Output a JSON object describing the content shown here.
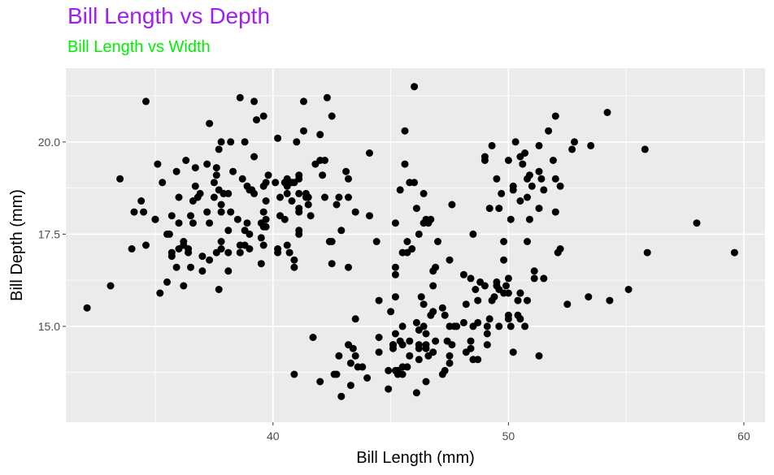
{
  "chart_data": {
    "type": "scatter",
    "title": "Bill Length vs Depth",
    "subtitle": "Bill Length vs Width",
    "xlabel": "Bill Length (mm)",
    "ylabel": "Bill Depth (mm)",
    "xlim": [
      31.2,
      60.9
    ],
    "ylim": [
      12.4,
      22.0
    ],
    "x_ticks": [
      40,
      50,
      60
    ],
    "x_tick_labels": [
      "40",
      "50",
      "60"
    ],
    "y_ticks": [
      15.0,
      17.5,
      20.0
    ],
    "y_tick_labels": [
      "15.0",
      "17.5",
      "20.0"
    ],
    "grid": true,
    "colors": {
      "title": "#a020f0",
      "subtitle": "#00ee00",
      "panel": "#ebebeb",
      "grid": "#ffffff",
      "point": "#000000"
    },
    "points": [
      [
        39.1,
        18.7
      ],
      [
        39.5,
        17.4
      ],
      [
        40.3,
        18.0
      ],
      [
        36.7,
        19.3
      ],
      [
        39.3,
        20.6
      ],
      [
        38.9,
        17.8
      ],
      [
        39.2,
        19.6
      ],
      [
        34.1,
        18.1
      ],
      [
        42.0,
        20.2
      ],
      [
        37.8,
        17.1
      ],
      [
        37.8,
        17.3
      ],
      [
        41.1,
        17.6
      ],
      [
        38.6,
        21.2
      ],
      [
        34.6,
        21.1
      ],
      [
        36.6,
        17.8
      ],
      [
        38.7,
        19.0
      ],
      [
        42.5,
        20.7
      ],
      [
        34.4,
        18.4
      ],
      [
        46.0,
        21.5
      ],
      [
        37.8,
        18.3
      ],
      [
        37.7,
        18.7
      ],
      [
        35.9,
        19.2
      ],
      [
        38.2,
        18.1
      ],
      [
        38.8,
        17.2
      ],
      [
        35.3,
        18.9
      ],
      [
        40.6,
        18.6
      ],
      [
        40.5,
        17.9
      ],
      [
        37.9,
        18.6
      ],
      [
        40.5,
        18.9
      ],
      [
        39.5,
        16.7
      ],
      [
        37.2,
        18.1
      ],
      [
        39.5,
        17.8
      ],
      [
        40.9,
        18.9
      ],
      [
        36.4,
        17.0
      ],
      [
        39.2,
        21.1
      ],
      [
        38.8,
        20.0
      ],
      [
        42.2,
        18.5
      ],
      [
        37.6,
        19.3
      ],
      [
        39.8,
        19.1
      ],
      [
        36.5,
        18.0
      ],
      [
        40.8,
        18.4
      ],
      [
        36.0,
        18.5
      ],
      [
        44.1,
        19.7
      ],
      [
        37.0,
        16.9
      ],
      [
        39.6,
        18.8
      ],
      [
        41.1,
        19.0
      ],
      [
        37.5,
        18.9
      ],
      [
        42.3,
        21.2
      ],
      [
        39.6,
        17.7
      ],
      [
        40.1,
        18.9
      ],
      [
        35.0,
        17.9
      ],
      [
        42.0,
        19.5
      ],
      [
        34.5,
        18.1
      ],
      [
        41.4,
        18.6
      ],
      [
        39.0,
        17.5
      ],
      [
        40.6,
        18.8
      ],
      [
        36.5,
        16.6
      ],
      [
        37.6,
        19.1
      ],
      [
        35.7,
        16.9
      ],
      [
        41.3,
        21.1
      ],
      [
        37.6,
        17.0
      ],
      [
        41.1,
        18.2
      ],
      [
        36.4,
        17.1
      ],
      [
        41.6,
        18.0
      ],
      [
        35.5,
        16.2
      ],
      [
        41.1,
        19.1
      ],
      [
        35.9,
        16.6
      ],
      [
        41.8,
        19.4
      ],
      [
        33.5,
        19.0
      ],
      [
        39.7,
        18.4
      ],
      [
        39.6,
        17.2
      ],
      [
        45.8,
        18.9
      ],
      [
        35.5,
        17.5
      ],
      [
        42.8,
        18.5
      ],
      [
        40.9,
        16.8
      ],
      [
        37.2,
        19.4
      ],
      [
        36.2,
        16.1
      ],
      [
        42.1,
        19.1
      ],
      [
        34.6,
        17.2
      ],
      [
        42.9,
        17.6
      ],
      [
        36.7,
        18.8
      ],
      [
        35.1,
        19.4
      ],
      [
        37.3,
        17.8
      ],
      [
        41.3,
        20.3
      ],
      [
        36.3,
        19.5
      ],
      [
        36.9,
        18.6
      ],
      [
        38.3,
        19.2
      ],
      [
        38.9,
        18.8
      ],
      [
        35.7,
        18.0
      ],
      [
        41.1,
        18.1
      ],
      [
        34.0,
        17.1
      ],
      [
        39.6,
        18.1
      ],
      [
        36.2,
        17.3
      ],
      [
        40.8,
        18.9
      ],
      [
        38.1,
        18.6
      ],
      [
        40.3,
        18.5
      ],
      [
        33.1,
        16.1
      ],
      [
        43.2,
        18.5
      ],
      [
        35.0,
        17.9
      ],
      [
        41.0,
        20.0
      ],
      [
        37.7,
        16.0
      ],
      [
        37.8,
        20.0
      ],
      [
        37.9,
        18.6
      ],
      [
        39.7,
        18.9
      ],
      [
        38.6,
        17.2
      ],
      [
        38.2,
        20.0
      ],
      [
        38.1,
        17.0
      ],
      [
        43.2,
        19.0
      ],
      [
        38.1,
        16.5
      ],
      [
        45.6,
        20.3
      ],
      [
        39.7,
        17.7
      ],
      [
        42.2,
        19.5
      ],
      [
        39.6,
        20.7
      ],
      [
        42.7,
        18.3
      ],
      [
        38.6,
        17.0
      ],
      [
        37.3,
        20.5
      ],
      [
        35.7,
        17.0
      ],
      [
        41.1,
        18.6
      ],
      [
        36.2,
        17.2
      ],
      [
        37.7,
        19.8
      ],
      [
        40.2,
        17.0
      ],
      [
        41.4,
        18.5
      ],
      [
        35.2,
        15.9
      ],
      [
        40.6,
        19.0
      ],
      [
        38.8,
        17.6
      ],
      [
        41.5,
        18.3
      ],
      [
        39.0,
        17.1
      ],
      [
        44.1,
        18.0
      ],
      [
        38.5,
        17.9
      ],
      [
        43.1,
        19.2
      ],
      [
        36.8,
        18.5
      ],
      [
        37.5,
        18.5
      ],
      [
        38.1,
        17.6
      ],
      [
        41.1,
        17.5
      ],
      [
        35.6,
        17.5
      ],
      [
        40.2,
        20.1
      ],
      [
        37.0,
        16.5
      ],
      [
        39.7,
        17.9
      ],
      [
        40.2,
        17.1
      ],
      [
        40.6,
        17.2
      ],
      [
        32.1,
        15.5
      ],
      [
        40.7,
        17.0
      ],
      [
        37.3,
        16.8
      ],
      [
        39.0,
        18.7
      ],
      [
        39.2,
        18.6
      ],
      [
        36.6,
        18.4
      ],
      [
        36.0,
        17.8
      ],
      [
        37.8,
        18.1
      ],
      [
        36.0,
        17.1
      ],
      [
        41.5,
        18.5
      ],
      [
        46.1,
        13.2
      ],
      [
        50.0,
        16.3
      ],
      [
        48.7,
        14.1
      ],
      [
        50.0,
        15.2
      ],
      [
        47.6,
        14.5
      ],
      [
        46.5,
        13.5
      ],
      [
        45.4,
        14.6
      ],
      [
        46.7,
        15.3
      ],
      [
        43.3,
        13.4
      ],
      [
        46.8,
        15.4
      ],
      [
        40.9,
        13.7
      ],
      [
        49.0,
        16.1
      ],
      [
        45.5,
        13.7
      ],
      [
        48.4,
        14.6
      ],
      [
        45.8,
        14.6
      ],
      [
        49.3,
        15.7
      ],
      [
        42.0,
        13.5
      ],
      [
        49.2,
        15.2
      ],
      [
        46.2,
        14.5
      ],
      [
        48.7,
        15.1
      ],
      [
        50.2,
        14.3
      ],
      [
        45.1,
        14.5
      ],
      [
        46.5,
        14.5
      ],
      [
        46.3,
        15.8
      ],
      [
        42.9,
        13.1
      ],
      [
        46.1,
        15.1
      ],
      [
        44.5,
        14.3
      ],
      [
        47.8,
        15.0
      ],
      [
        48.2,
        14.3
      ],
      [
        50.0,
        15.3
      ],
      [
        47.3,
        15.3
      ],
      [
        42.8,
        14.2
      ],
      [
        45.1,
        14.5
      ],
      [
        59.6,
        17.0
      ],
      [
        49.1,
        14.8
      ],
      [
        48.4,
        16.3
      ],
      [
        42.6,
        13.7
      ],
      [
        44.4,
        17.3
      ],
      [
        44.0,
        13.6
      ],
      [
        48.7,
        15.7
      ],
      [
        42.7,
        13.7
      ],
      [
        49.6,
        16.0
      ],
      [
        45.3,
        13.7
      ],
      [
        49.6,
        15.0
      ],
      [
        50.5,
        15.9
      ],
      [
        43.6,
        13.9
      ],
      [
        45.5,
        13.9
      ],
      [
        50.5,
        15.9
      ],
      [
        44.9,
        13.3
      ],
      [
        45.2,
        15.8
      ],
      [
        46.6,
        14.2
      ],
      [
        48.5,
        14.1
      ],
      [
        45.1,
        14.4
      ],
      [
        50.1,
        15.0
      ],
      [
        46.5,
        14.4
      ],
      [
        45.0,
        15.4
      ],
      [
        43.8,
        13.9
      ],
      [
        45.5,
        15.0
      ],
      [
        43.2,
        14.5
      ],
      [
        50.4,
        15.3
      ],
      [
        45.3,
        13.8
      ],
      [
        46.2,
        14.9
      ],
      [
        45.7,
        13.9
      ],
      [
        54.3,
        15.7
      ],
      [
        45.8,
        14.2
      ],
      [
        49.8,
        16.8
      ],
      [
        46.2,
        14.4
      ],
      [
        49.5,
        16.2
      ],
      [
        43.5,
        14.2
      ],
      [
        50.7,
        15.0
      ],
      [
        47.7,
        15.0
      ],
      [
        46.4,
        15.6
      ],
      [
        48.2,
        15.6
      ],
      [
        46.5,
        14.8
      ],
      [
        46.4,
        15.0
      ],
      [
        48.6,
        16.0
      ],
      [
        47.5,
        14.2
      ],
      [
        51.1,
        16.3
      ],
      [
        45.2,
        13.8
      ],
      [
        45.2,
        16.4
      ],
      [
        49.1,
        14.5
      ],
      [
        52.5,
        15.6
      ],
      [
        47.4,
        14.6
      ],
      [
        50.0,
        15.9
      ],
      [
        44.9,
        13.8
      ],
      [
        50.8,
        17.3
      ],
      [
        43.4,
        14.4
      ],
      [
        51.3,
        14.2
      ],
      [
        47.5,
        14.0
      ],
      [
        52.1,
        17.0
      ],
      [
        47.5,
        15.0
      ],
      [
        52.2,
        17.1
      ],
      [
        45.5,
        14.5
      ],
      [
        49.5,
        16.1
      ],
      [
        44.5,
        14.7
      ],
      [
        50.8,
        15.7
      ],
      [
        49.4,
        15.8
      ],
      [
        46.9,
        14.6
      ],
      [
        48.4,
        14.4
      ],
      [
        51.1,
        16.5
      ],
      [
        48.5,
        15.0
      ],
      [
        55.9,
        17.0
      ],
      [
        47.2,
        15.5
      ],
      [
        49.1,
        15.0
      ],
      [
        47.3,
        13.8
      ],
      [
        46.8,
        16.1
      ],
      [
        41.7,
        14.7
      ],
      [
        53.4,
        15.8
      ],
      [
        43.3,
        14.0
      ],
      [
        48.1,
        15.1
      ],
      [
        50.5,
        15.2
      ],
      [
        49.8,
        15.9
      ],
      [
        43.5,
        15.2
      ],
      [
        51.5,
        16.3
      ],
      [
        46.2,
        14.1
      ],
      [
        55.1,
        16.0
      ],
      [
        44.5,
        15.7
      ],
      [
        48.8,
        16.2
      ],
      [
        47.2,
        13.7
      ],
      [
        46.8,
        14.3
      ],
      [
        50.4,
        15.7
      ],
      [
        45.2,
        14.8
      ],
      [
        49.9,
        16.1
      ],
      [
        46.5,
        17.9
      ],
      [
        50.0,
        19.5
      ],
      [
        51.3,
        19.2
      ],
      [
        45.4,
        18.7
      ],
      [
        52.7,
        19.8
      ],
      [
        45.2,
        17.8
      ],
      [
        46.1,
        18.2
      ],
      [
        51.3,
        18.2
      ],
      [
        46.0,
        18.9
      ],
      [
        51.3,
        19.9
      ],
      [
        46.6,
        17.8
      ],
      [
        51.7,
        20.3
      ],
      [
        47.0,
        17.3
      ],
      [
        52.0,
        18.1
      ],
      [
        45.9,
        17.1
      ],
      [
        50.5,
        19.6
      ],
      [
        50.3,
        20.0
      ],
      [
        58.0,
        17.8
      ],
      [
        46.4,
        18.6
      ],
      [
        49.2,
        18.2
      ],
      [
        42.4,
        17.3
      ],
      [
        48.5,
        17.5
      ],
      [
        43.2,
        16.6
      ],
      [
        50.6,
        19.4
      ],
      [
        46.7,
        17.9
      ],
      [
        52.0,
        19.0
      ],
      [
        50.5,
        18.4
      ],
      [
        49.5,
        19.0
      ],
      [
        46.4,
        17.8
      ],
      [
        52.8,
        20.0
      ],
      [
        40.9,
        16.6
      ],
      [
        54.2,
        20.8
      ],
      [
        42.5,
        16.7
      ],
      [
        51.0,
        18.8
      ],
      [
        49.7,
        18.6
      ],
      [
        47.5,
        16.8
      ],
      [
        47.6,
        18.3
      ],
      [
        52.0,
        20.7
      ],
      [
        46.9,
        16.6
      ],
      [
        53.5,
        19.9
      ],
      [
        49.0,
        19.5
      ],
      [
        46.2,
        17.5
      ],
      [
        50.9,
        19.1
      ],
      [
        45.5,
        17.0
      ],
      [
        50.9,
        17.9
      ],
      [
        50.8,
        18.5
      ],
      [
        50.1,
        17.9
      ],
      [
        49.0,
        19.6
      ],
      [
        51.5,
        18.7
      ],
      [
        49.8,
        17.3
      ],
      [
        48.1,
        16.4
      ],
      [
        51.4,
        19.0
      ],
      [
        45.7,
        17.3
      ],
      [
        50.7,
        19.7
      ],
      [
        42.5,
        17.3
      ],
      [
        52.2,
        18.8
      ],
      [
        45.2,
        16.6
      ],
      [
        49.3,
        19.9
      ],
      [
        50.2,
        18.8
      ],
      [
        45.6,
        19.4
      ],
      [
        51.9,
        19.5
      ],
      [
        46.8,
        16.5
      ],
      [
        45.7,
        17.0
      ],
      [
        55.8,
        19.8
      ],
      [
        43.5,
        18.1
      ],
      [
        49.6,
        18.2
      ],
      [
        50.8,
        19.0
      ],
      [
        50.2,
        18.7
      ]
    ]
  }
}
